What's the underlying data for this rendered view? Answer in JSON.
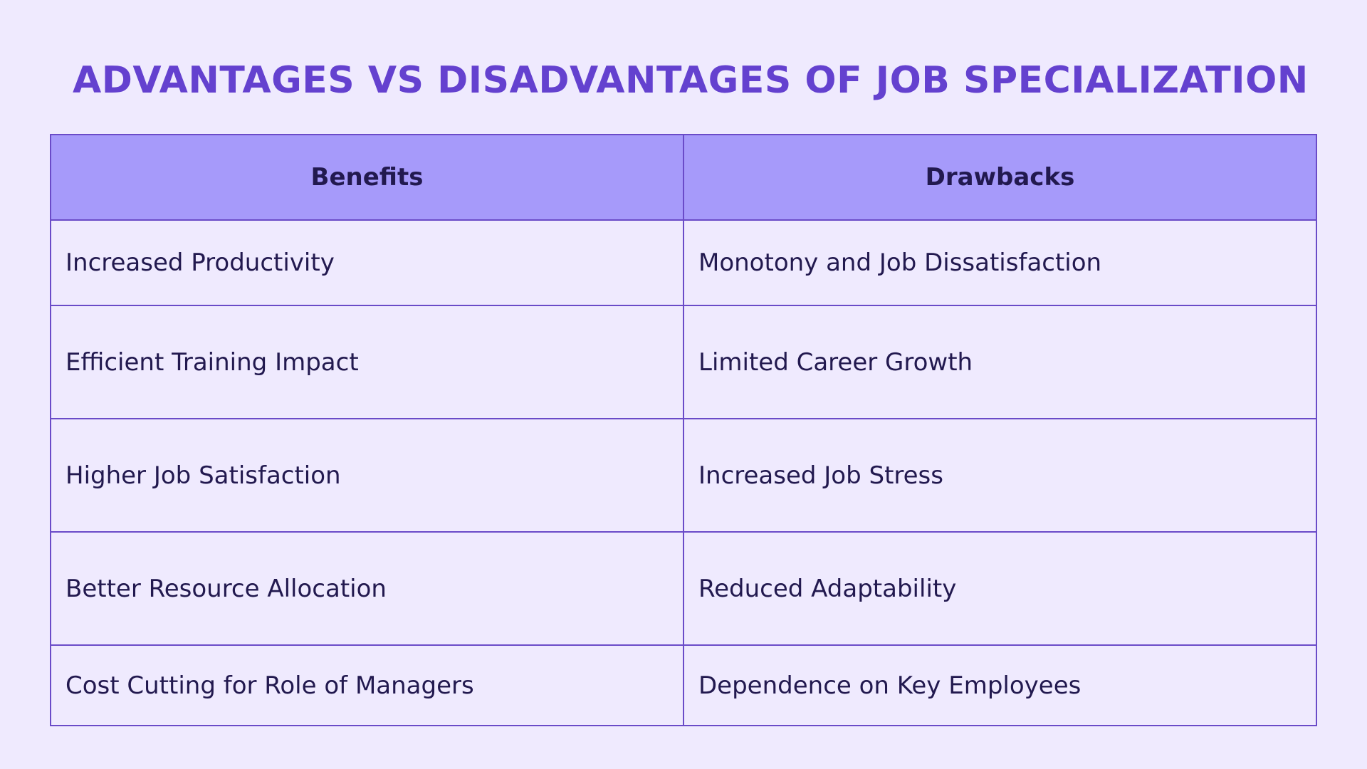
{
  "title": "ADVANTAGES VS DISADVANTAGES OF JOB SPECIALIZATION",
  "table": {
    "headers": [
      "Benefits",
      "Drawbacks"
    ],
    "rows": [
      [
        "Increased Productivity",
        "Monotony and Job Dissatisfaction"
      ],
      [
        "Efficient Training Impact",
        "Limited Career Growth"
      ],
      [
        "Higher Job Satisfaction",
        "Increased Job Stress"
      ],
      [
        "Better Resource Allocation",
        "Reduced Adaptability"
      ],
      [
        "Cost Cutting for Role of Managers",
        "Dependence on Key Employees"
      ]
    ]
  },
  "colors": {
    "background": "#efeafe",
    "title": "#6441cf",
    "header_fill": "#a69afa",
    "border": "#6a4bc8",
    "text": "#22194f"
  }
}
